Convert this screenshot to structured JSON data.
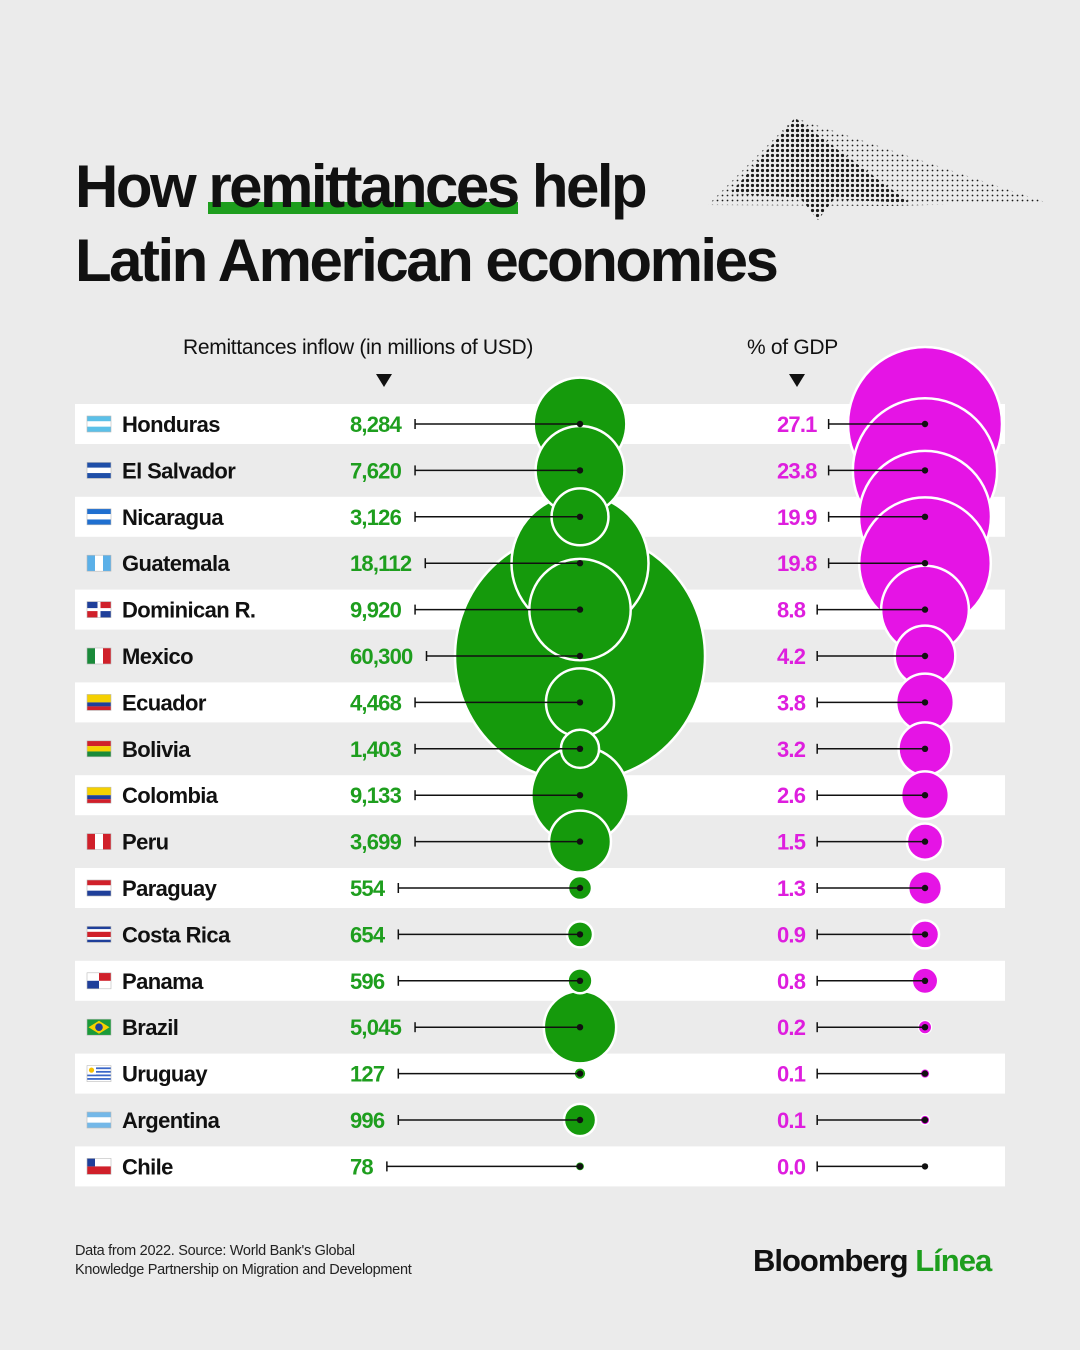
{
  "title": {
    "pre": "How ",
    "highlight": "remittances",
    "post": " help",
    "line2": "Latin American economies"
  },
  "headers": {
    "inflow": "Remittances inflow (in millions of USD)",
    "gdp": "% of GDP"
  },
  "footnote": {
    "line1": "Data from 2022. Source: World Bank's Global",
    "line2": "Knowledge Partnership on Migration and Development"
  },
  "brand": {
    "part1": "Bloomberg",
    "part2": "Línea"
  },
  "colors": {
    "background": "#ebebeb",
    "row": "#ffffff",
    "inflow": "#159a0c",
    "inflow_text": "#1e9e1e",
    "gdp": "#e514e5",
    "gdp_text": "#de1ede",
    "text": "#111111"
  },
  "chart_data": {
    "type": "bubble",
    "categories": [
      "Honduras",
      "El Salvador",
      "Nicaragua",
      "Guatemala",
      "Dominican R.",
      "Mexico",
      "Ecuador",
      "Bolivia",
      "Colombia",
      "Peru",
      "Paraguay",
      "Costa Rica",
      "Panama",
      "Brazil",
      "Uruguay",
      "Argentina",
      "Chile"
    ],
    "flag_icons": [
      "honduras-flag-icon",
      "el-salvador-flag-icon",
      "nicaragua-flag-icon",
      "guatemala-flag-icon",
      "dominican-republic-flag-icon",
      "mexico-flag-icon",
      "ecuador-flag-icon",
      "bolivia-flag-icon",
      "colombia-flag-icon",
      "peru-flag-icon",
      "paraguay-flag-icon",
      "costa-rica-flag-icon",
      "panama-flag-icon",
      "brazil-flag-icon",
      "uruguay-flag-icon",
      "argentina-flag-icon",
      "chile-flag-icon"
    ],
    "series": [
      {
        "name": "Remittances inflow (in millions of USD)",
        "values": [
          8284,
          7620,
          3126,
          18112,
          9920,
          60300,
          4468,
          1403,
          9133,
          3699,
          554,
          654,
          596,
          5045,
          127,
          996,
          78
        ],
        "labels": [
          "8,284",
          "7,620",
          "3,126",
          "18,112",
          "9,920",
          "60,300",
          "4,468",
          "1,403",
          "9,133",
          "3,699",
          "554",
          "654",
          "596",
          "5,045",
          "127",
          "996",
          "78"
        ]
      },
      {
        "name": "% of GDP",
        "values": [
          27.1,
          23.8,
          19.9,
          19.8,
          8.8,
          4.2,
          3.8,
          3.2,
          2.6,
          1.5,
          1.3,
          0.9,
          0.8,
          0.2,
          0.1,
          0.1,
          0.0
        ],
        "labels": [
          "27.1",
          "23.8",
          "19.9",
          "19.8",
          "8.8",
          "4.2",
          "3.8",
          "3.2",
          "2.6",
          "1.5",
          "1.3",
          "0.9",
          "0.8",
          "0.2",
          "0.1",
          "0.1",
          "0.0"
        ]
      }
    ]
  }
}
